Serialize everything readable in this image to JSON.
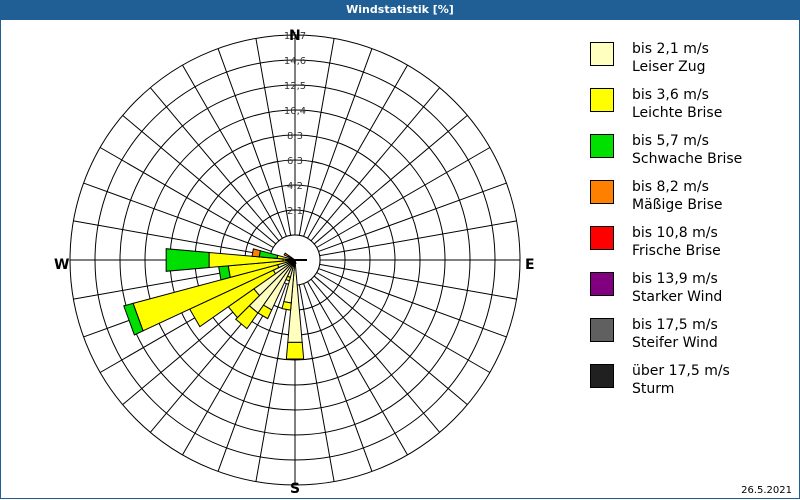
{
  "window": {
    "title": "Windstatistik [%]"
  },
  "footer": {
    "date": "26.5.2021"
  },
  "compass": {
    "n": "N",
    "e": "E",
    "s": "S",
    "w": "W"
  },
  "legend": [
    {
      "range": "bis 2,1 m/s",
      "name": "Leiser Zug",
      "color": "#ffffc0"
    },
    {
      "range": "bis 3,6 m/s",
      "name": "Leichte Brise",
      "color": "#ffff00"
    },
    {
      "range": "bis 5,7 m/s",
      "name": "Schwache Brise",
      "color": "#00e000"
    },
    {
      "range": "bis 8,2 m/s",
      "name": "Mäßige Brise",
      "color": "#ff8000"
    },
    {
      "range": "bis 10,8 m/s",
      "name": "Frische Brise",
      "color": "#ff0000"
    },
    {
      "range": "bis 13,9 m/s",
      "name": "Starker Wind",
      "color": "#800080"
    },
    {
      "range": "bis 17,5 m/s",
      "name": "Steifer Wind",
      "color": "#606060"
    },
    {
      "range": "über 17,5 m/s",
      "name": "Sturm",
      "color": "#202020"
    }
  ],
  "chart_data": {
    "type": "windrose",
    "title": "Windstatistik [%]",
    "radial_ticks": [
      "2,1",
      "4,2",
      "6,3",
      "8,3",
      "10,4",
      "12,5",
      "14,6",
      "16,7"
    ],
    "radial_max": 16.7,
    "sector_width_deg": 10,
    "series_names": [
      "bis 2,1 m/s",
      "bis 3,6 m/s",
      "bis 5,7 m/s",
      "bis 8,2 m/s"
    ],
    "sectors": [
      {
        "dir": 170,
        "values": [
          0.3,
          0.0,
          0.0,
          0.0
        ]
      },
      {
        "dir": 180,
        "values": [
          6.9,
          1.4,
          0.0,
          0.0
        ]
      },
      {
        "dir": 190,
        "values": [
          3.6,
          0.6,
          0.0,
          0.0
        ]
      },
      {
        "dir": 200,
        "values": [
          1.5,
          0.3,
          0.0,
          0.0
        ]
      },
      {
        "dir": 210,
        "values": [
          4.6,
          0.8,
          0.0,
          0.0
        ]
      },
      {
        "dir": 220,
        "values": [
          5.4,
          1.6,
          0.0,
          0.0
        ]
      },
      {
        "dir": 230,
        "values": [
          4.2,
          2.6,
          0.0,
          0.0
        ]
      },
      {
        "dir": 240,
        "values": [
          2.0,
          7.7,
          0.0,
          0.0
        ]
      },
      {
        "dir": 250,
        "values": [
          1.5,
          12.5,
          0.8,
          0.0
        ]
      },
      {
        "dir": 260,
        "values": [
          0.6,
          5.0,
          0.8,
          0.0
        ]
      },
      {
        "dir": 270,
        "values": [
          1.0,
          6.2,
          3.6,
          0.0
        ]
      },
      {
        "dir": 280,
        "values": [
          0.5,
          1.0,
          1.5,
          0.6
        ]
      },
      {
        "dir": 290,
        "values": [
          0.4,
          0.0,
          0.0,
          0.0
        ]
      },
      {
        "dir": 300,
        "values": [
          0.3,
          0.3,
          0.0,
          0.4
        ]
      }
    ]
  }
}
